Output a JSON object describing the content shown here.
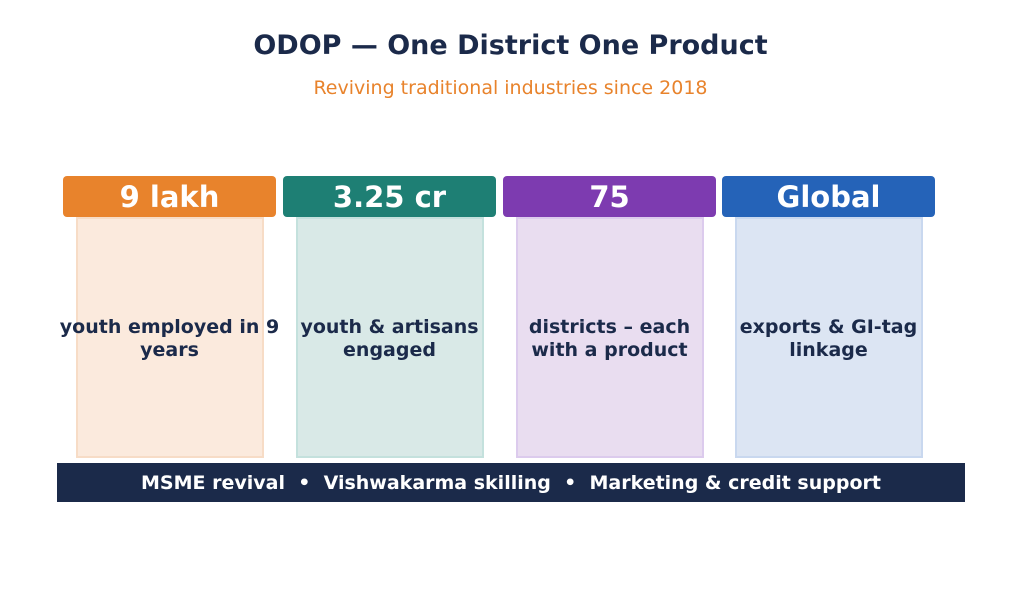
{
  "header": {
    "title": "ODOP — One District One Product",
    "subtitle": "Reviving traditional industries since 2018"
  },
  "cards": [
    {
      "value": "9 lakh",
      "label": "youth employed in 9 years"
    },
    {
      "value": "3.25 cr",
      "label": "youth & artisans engaged"
    },
    {
      "value": "75",
      "label": "districts – each with a product"
    },
    {
      "value": "Global",
      "label": "exports & GI-tag linkage"
    }
  ],
  "footer": {
    "text": "MSME revival  •  Vishwakarma skilling  •  Marketing & credit support"
  }
}
